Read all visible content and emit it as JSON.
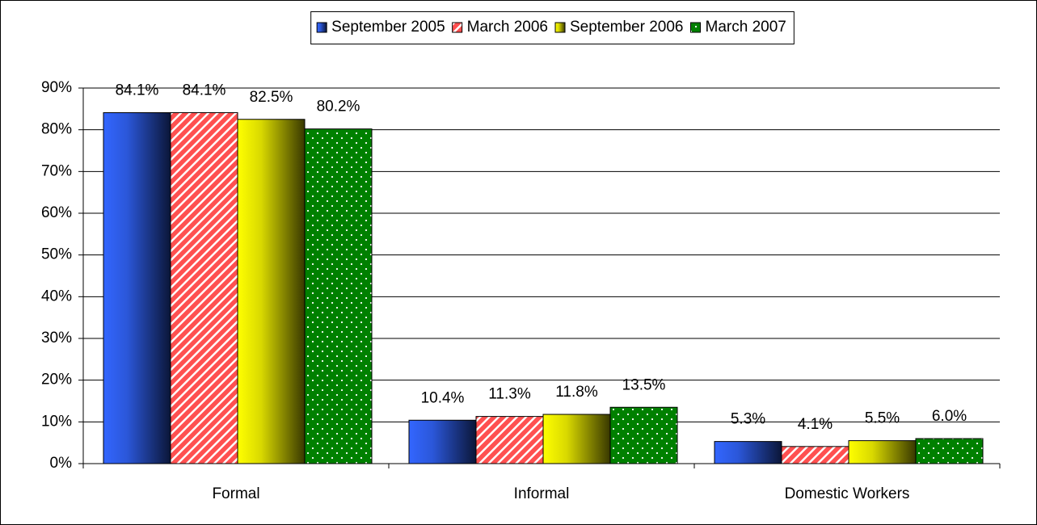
{
  "chart_data": {
    "type": "bar",
    "categories": [
      "Formal",
      "Informal",
      "Domestic Workers"
    ],
    "series": [
      {
        "name": "September 2005",
        "color": "#3366ff",
        "fill_style": "gradient",
        "values": [
          84.1,
          10.4,
          5.3
        ],
        "value_labels": [
          "84.1%",
          "10.4%",
          "5.3%"
        ]
      },
      {
        "name": "March 2006",
        "color": "#ff5050",
        "fill_style": "stripes",
        "values": [
          84.1,
          11.3,
          4.1
        ],
        "value_labels": [
          "84.1%",
          "11.3%",
          "4.1%"
        ]
      },
      {
        "name": "September 2006",
        "color": "#ffff00",
        "fill_style": "gradient",
        "values": [
          82.5,
          11.8,
          5.5
        ],
        "value_labels": [
          "82.5%",
          "11.8%",
          "5.5%"
        ]
      },
      {
        "name": "March 2007",
        "color": "#008000",
        "fill_style": "dots",
        "values": [
          80.2,
          13.5,
          6.0
        ],
        "value_labels": [
          "80.2%",
          "13.5%",
          "6.0%"
        ]
      }
    ],
    "ylim": [
      0,
      90
    ],
    "yticks": [
      {
        "value": 0,
        "label": "0%"
      },
      {
        "value": 10,
        "label": "10%"
      },
      {
        "value": 20,
        "label": "20%"
      },
      {
        "value": 30,
        "label": "30%"
      },
      {
        "value": 40,
        "label": "40%"
      },
      {
        "value": 50,
        "label": "50%"
      },
      {
        "value": 60,
        "label": "60%"
      },
      {
        "value": 70,
        "label": "70%"
      },
      {
        "value": 80,
        "label": "80%"
      },
      {
        "value": 90,
        "label": "90%"
      }
    ],
    "grid": true,
    "legend": "top"
  }
}
